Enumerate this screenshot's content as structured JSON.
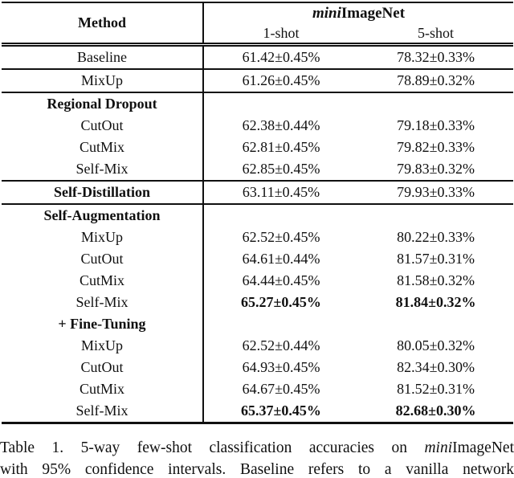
{
  "colors": {
    "background": "#ffffff",
    "text": "#101010",
    "rule": "#101010"
  },
  "table": {
    "header": {
      "method": "Method",
      "dataset_italic": "mini",
      "dataset_rest": "ImageNet",
      "one_shot": "1-shot",
      "five_shot": "5-shot"
    },
    "rows": [
      {
        "label": "Baseline",
        "bold_label": false,
        "one_shot": "61.42±0.45%",
        "five_shot": "78.32±0.33%",
        "bold_values": false,
        "rule_below": true
      },
      {
        "label": "MixUp",
        "bold_label": false,
        "one_shot": "61.26±0.45%",
        "five_shot": "78.89±0.32%",
        "bold_values": false,
        "rule_below": true
      },
      {
        "label": "Regional Dropout",
        "bold_label": true,
        "one_shot": "",
        "five_shot": "",
        "bold_values": false,
        "rule_below": false
      },
      {
        "label": "CutOut",
        "bold_label": false,
        "one_shot": "62.38±0.44%",
        "five_shot": "79.18±0.33%",
        "bold_values": false,
        "rule_below": false
      },
      {
        "label": "CutMix",
        "bold_label": false,
        "one_shot": "62.81±0.45%",
        "five_shot": "79.82±0.33%",
        "bold_values": false,
        "rule_below": false
      },
      {
        "label": "Self-Mix",
        "bold_label": false,
        "one_shot": "62.85±0.45%",
        "five_shot": "79.83±0.32%",
        "bold_values": false,
        "rule_below": true
      },
      {
        "label": "Self-Distillation",
        "bold_label": true,
        "one_shot": "63.11±0.45%",
        "five_shot": "79.93±0.33%",
        "bold_values": false,
        "rule_below": true
      },
      {
        "label": "Self-Augmentation",
        "bold_label": true,
        "one_shot": "",
        "five_shot": "",
        "bold_values": false,
        "rule_below": false
      },
      {
        "label": "MixUp",
        "bold_label": false,
        "one_shot": "62.52±0.45%",
        "five_shot": "80.22±0.33%",
        "bold_values": false,
        "rule_below": false
      },
      {
        "label": "CutOut",
        "bold_label": false,
        "one_shot": "64.61±0.44%",
        "five_shot": "81.57±0.31%",
        "bold_values": false,
        "rule_below": false
      },
      {
        "label": "CutMix",
        "bold_label": false,
        "one_shot": "64.44±0.45%",
        "five_shot": "81.58±0.32%",
        "bold_values": false,
        "rule_below": false
      },
      {
        "label": "Self-Mix",
        "bold_label": false,
        "one_shot": "65.27±0.45%",
        "five_shot": "81.84±0.32%",
        "bold_values": true,
        "rule_below": false
      },
      {
        "label": "+ Fine-Tuning",
        "bold_label": true,
        "one_shot": "",
        "five_shot": "",
        "bold_values": false,
        "rule_below": false
      },
      {
        "label": "MixUp",
        "bold_label": false,
        "one_shot": "62.52±0.44%",
        "five_shot": "80.05±0.32%",
        "bold_values": false,
        "rule_below": false
      },
      {
        "label": "CutOut",
        "bold_label": false,
        "one_shot": "64.93±0.45%",
        "five_shot": "82.34±0.30%",
        "bold_values": false,
        "rule_below": false
      },
      {
        "label": "CutMix",
        "bold_label": false,
        "one_shot": "64.67±0.45%",
        "five_shot": "81.52±0.31%",
        "bold_values": false,
        "rule_below": false
      },
      {
        "label": "Self-Mix",
        "bold_label": false,
        "one_shot": "65.37±0.45%",
        "five_shot": "82.68±0.30%",
        "bold_values": true,
        "rule_below": false
      }
    ]
  },
  "caption": {
    "line1_pre": "Table 1. 5-way few-shot classification accuracies on ",
    "line1_italic": "mini",
    "line1_post": "ImageNet",
    "line2": "with 95% confidence intervals. Baseline refers to a vanilla network"
  }
}
